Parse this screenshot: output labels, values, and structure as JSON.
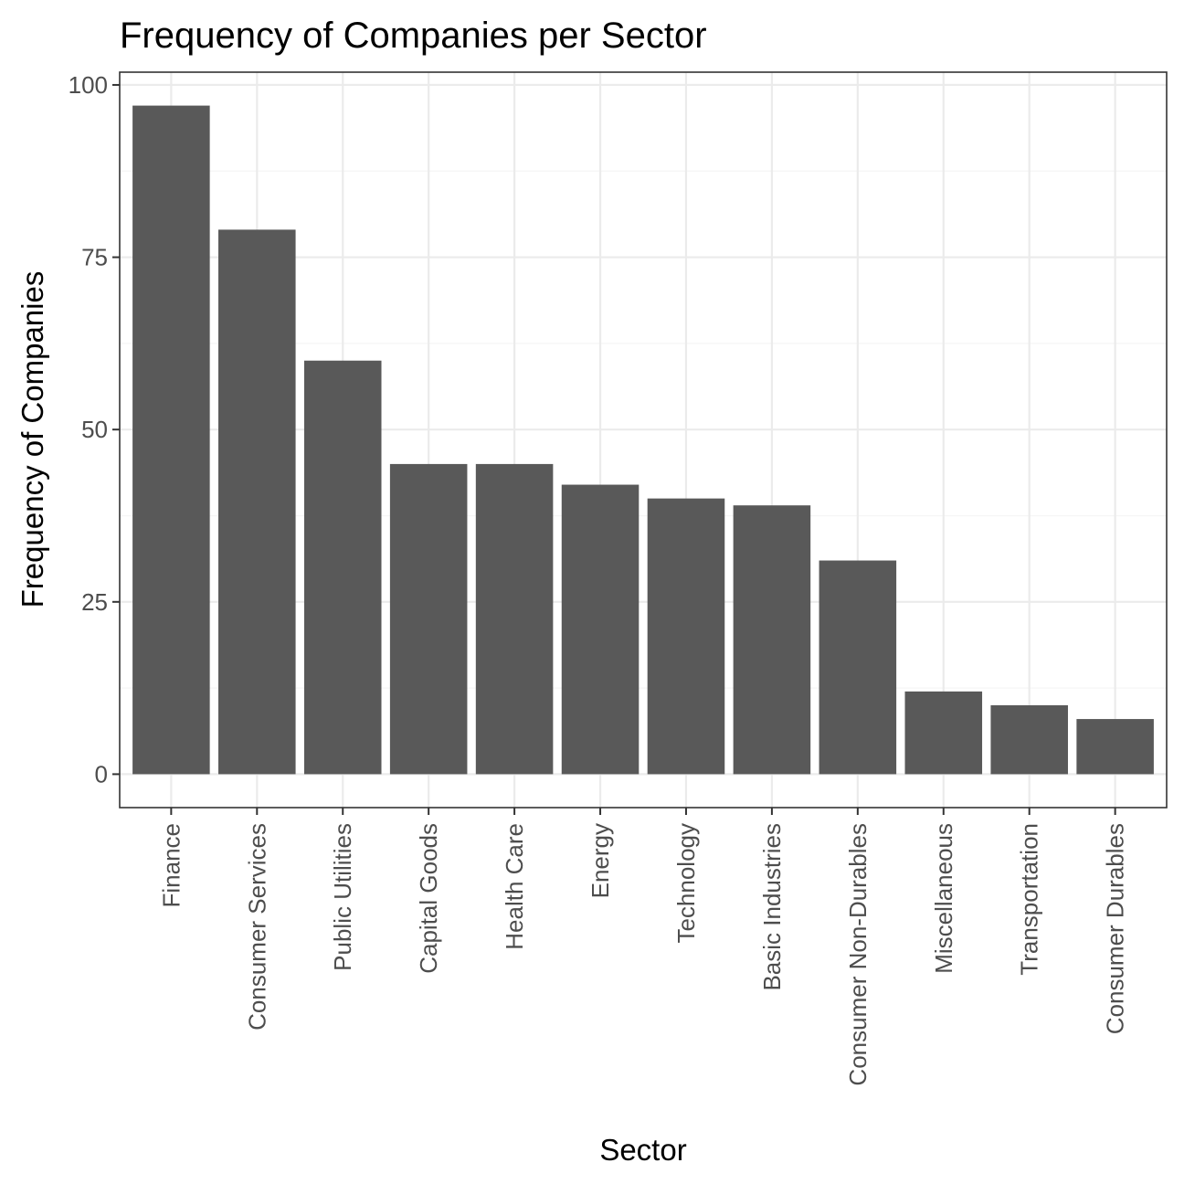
{
  "chart_data": {
    "type": "bar",
    "title": "Frequency of Companies per Sector",
    "xlabel": "Sector",
    "ylabel": "Frequency of Companies",
    "categories": [
      "Finance",
      "Consumer Services",
      "Public Utilities",
      "Capital Goods",
      "Health Care",
      "Energy",
      "Technology",
      "Basic Industries",
      "Consumer Non-Durables",
      "Miscellaneous",
      "Transportation",
      "Consumer Durables"
    ],
    "values": [
      97,
      79,
      60,
      45,
      45,
      42,
      40,
      39,
      31,
      12,
      10,
      8
    ],
    "yticks": [
      0,
      25,
      50,
      75,
      100
    ],
    "ylim": [
      -4.85,
      101.85
    ],
    "grid": true,
    "legend": "none",
    "bar_color": "#595959"
  }
}
